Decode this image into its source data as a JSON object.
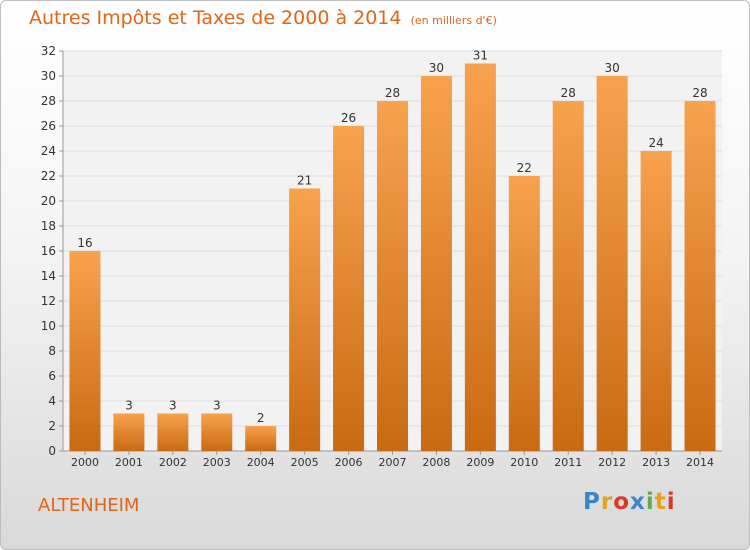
{
  "header": {
    "title": "Autres Impôts et Taxes de 2000 à 2014",
    "unit": "(en milliers d'€)"
  },
  "footer": {
    "place": "ALTENHEIM",
    "logo": [
      {
        "ch": "P",
        "color": "#3a86c8"
      },
      {
        "ch": "r",
        "color": "#e8a21a"
      },
      {
        "ch": "o",
        "color": "#d9392b"
      },
      {
        "ch": "x",
        "color": "#3a86c8"
      },
      {
        "ch": "i",
        "color": "#6aa84f"
      },
      {
        "ch": "t",
        "color": "#e8a21a"
      },
      {
        "ch": "i",
        "color": "#d9392b"
      }
    ]
  },
  "chart_data": {
    "type": "bar",
    "title": "Autres Impôts et Taxes de 2000 à 2014",
    "ylabel": "",
    "xlabel": "",
    "categories": [
      "2000",
      "2001",
      "2002",
      "2003",
      "2004",
      "2005",
      "2006",
      "2007",
      "2008",
      "2009",
      "2010",
      "2011",
      "2012",
      "2013",
      "2014"
    ],
    "values": [
      16,
      3,
      3,
      3,
      2,
      21,
      26,
      28,
      30,
      31,
      22,
      28,
      30,
      24,
      28
    ],
    "ylim": [
      0,
      32
    ],
    "yticks": [
      0,
      2,
      4,
      6,
      8,
      10,
      12,
      14,
      16,
      18,
      20,
      22,
      24,
      26,
      28,
      30,
      32
    ],
    "grid": true,
    "bar_color_top": "#f8a24e",
    "bar_color_bottom": "#c96a12",
    "axis_color": "#999999",
    "title_color": "#e0661a"
  }
}
